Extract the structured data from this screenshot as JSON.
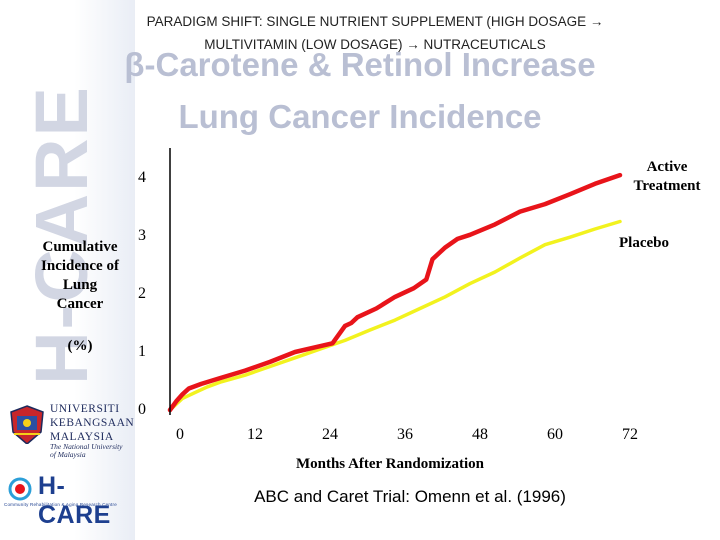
{
  "brand": {
    "vertical_text": "H-CARE",
    "university_name": "UNIVERSITI KEBANGSAAN MALAYSIA",
    "university_sub": "The National University of Malaysia",
    "hcare_text": "H-CARE",
    "hcare_tagline": "Community Rehabilitation & Aging Research Centre"
  },
  "header": {
    "line1": "PARADIGM SHIFT: SINGLE NUTRIENT SUPPLEMENT (HIGH DOSAGE →",
    "line2": "MULTIVITAMIN (LOW DOSAGE) → NUTRACEUTICALS"
  },
  "title": {
    "line1": "β-Carotene & Retinol Increase",
    "line2": "Lung Cancer Incidence"
  },
  "citation": "ABC and Caret Trial: Omenn et al. (1996)",
  "colors": {
    "active": "#e8141a",
    "placebo": "#f2f21e",
    "axis": "#000000",
    "title": "#b9bfd3"
  },
  "chart_data": {
    "type": "line",
    "title": "β-Carotene & Retinol Increase Lung Cancer Incidence",
    "xlabel": "Months After Randomization",
    "ylabel_lines": [
      "Cumulative",
      "Incidence of",
      "Lung",
      "Cancer"
    ],
    "ylabel_unit": "(%)",
    "xlim": [
      0,
      72
    ],
    "ylim": [
      0,
      4
    ],
    "xticks": [
      "0",
      "12",
      "24",
      "36",
      "48",
      "60",
      "72"
    ],
    "yticks": [
      "0",
      "1",
      "2",
      "3",
      "4"
    ],
    "grid": false,
    "series": [
      {
        "name": "Active Treatment",
        "label_lines": [
          "Active",
          "Treatment"
        ],
        "color": "#e8141a",
        "x": [
          0,
          1,
          2,
          3,
          5,
          8,
          12,
          16,
          20,
          24,
          26,
          27,
          28,
          29,
          30,
          33,
          36,
          39,
          41,
          42,
          44,
          46,
          48,
          52,
          56,
          60,
          64,
          68,
          72
        ],
        "y": [
          0.0,
          0.15,
          0.27,
          0.37,
          0.45,
          0.55,
          0.68,
          0.83,
          1.0,
          1.1,
          1.15,
          1.3,
          1.45,
          1.5,
          1.6,
          1.75,
          1.95,
          2.1,
          2.25,
          2.6,
          2.8,
          2.95,
          3.02,
          3.2,
          3.42,
          3.55,
          3.72,
          3.9,
          4.05
        ]
      },
      {
        "name": "Placebo",
        "label_lines": [
          "Placebo"
        ],
        "color": "#f2f21e",
        "x": [
          0,
          2,
          4,
          6,
          8,
          12,
          16,
          20,
          24,
          28,
          32,
          36,
          40,
          44,
          48,
          52,
          56,
          60,
          64,
          68,
          72
        ],
        "y": [
          0.0,
          0.2,
          0.3,
          0.4,
          0.48,
          0.6,
          0.75,
          0.9,
          1.05,
          1.2,
          1.38,
          1.55,
          1.75,
          1.95,
          2.18,
          2.38,
          2.62,
          2.85,
          2.98,
          3.12,
          3.25
        ]
      }
    ]
  }
}
